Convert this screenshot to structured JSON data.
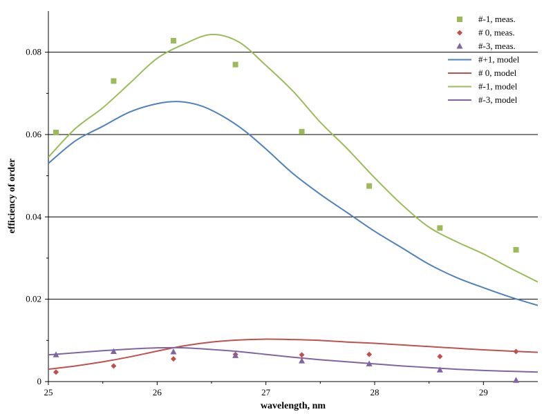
{
  "chart_data": {
    "type": "scatter",
    "xlabel": "wavelength, nm",
    "ylabel": "efficiency of order",
    "xlim": [
      25,
      29.5
    ],
    "ylim": [
      0,
      0.09
    ],
    "xticks": [
      {
        "value": 25,
        "label": "25"
      },
      {
        "value": 26,
        "label": "26"
      },
      {
        "value": 27,
        "label": "27"
      },
      {
        "value": 28,
        "label": "28"
      },
      {
        "value": 29,
        "label": "29"
      }
    ],
    "yticks": [
      {
        "value": 0,
        "label": "0"
      },
      {
        "value": 0.02,
        "label": "0.02"
      },
      {
        "value": 0.04,
        "label": "0.04"
      },
      {
        "value": 0.06,
        "label": "0.06"
      },
      {
        "value": 0.08,
        "label": "0.08"
      }
    ],
    "grid": "horizontal major lines",
    "legend_position": "top-right",
    "series": [
      {
        "name": "#-1, meas.",
        "kind": "marker",
        "marker": "square",
        "color": "#9BBB59",
        "x": [
          25.07,
          25.6,
          26.15,
          26.72,
          27.33,
          27.95,
          28.6,
          29.3
        ],
        "y": [
          0.0605,
          0.073,
          0.0828,
          0.077,
          0.0607,
          0.0475,
          0.0373,
          0.032
        ]
      },
      {
        "name": "# 0, meas.",
        "kind": "marker",
        "marker": "diamond",
        "color": "#C0504D",
        "x": [
          25.07,
          25.6,
          26.15,
          26.72,
          27.33,
          27.95,
          28.6,
          29.3
        ],
        "y": [
          0.0023,
          0.0038,
          0.0055,
          0.0066,
          0.0065,
          0.0066,
          0.0061,
          0.0073
        ]
      },
      {
        "name": "#-3, meas.",
        "kind": "marker",
        "marker": "triangle",
        "color": "#8064A2",
        "x": [
          25.07,
          25.6,
          26.15,
          26.72,
          27.33,
          27.95,
          28.6,
          29.3
        ],
        "y": [
          0.0065,
          0.0073,
          0.0072,
          0.0063,
          0.005,
          0.0043,
          0.0028,
          0.0003
        ]
      },
      {
        "name": "#+1, model",
        "kind": "line",
        "color": "#4F81BD",
        "x": [
          25.0,
          25.25,
          25.5,
          25.75,
          26.0,
          26.2,
          26.4,
          26.6,
          26.8,
          27.0,
          27.25,
          27.5,
          27.75,
          28.0,
          28.25,
          28.5,
          28.75,
          29.0,
          29.25,
          29.5
        ],
        "y": [
          0.053,
          0.0585,
          0.062,
          0.0655,
          0.0675,
          0.068,
          0.067,
          0.0645,
          0.061,
          0.0565,
          0.0505,
          0.0455,
          0.041,
          0.0365,
          0.0325,
          0.0285,
          0.0253,
          0.0228,
          0.0205,
          0.0185
        ]
      },
      {
        "name": "# 0,  model",
        "kind": "line",
        "color": "#C0504D",
        "x": [
          25.0,
          25.25,
          25.5,
          25.75,
          26.0,
          26.25,
          26.5,
          26.75,
          27.0,
          27.25,
          27.5,
          27.75,
          28.0,
          28.25,
          28.5,
          28.75,
          29.0,
          29.25,
          29.5
        ],
        "y": [
          0.003,
          0.0038,
          0.0048,
          0.006,
          0.0074,
          0.0087,
          0.0096,
          0.0101,
          0.0103,
          0.0102,
          0.01,
          0.0096,
          0.0093,
          0.0089,
          0.0085,
          0.0081,
          0.0077,
          0.0074,
          0.0071
        ]
      },
      {
        "name": "#-1,  model",
        "kind": "line",
        "color": "#9BBB59",
        "x": [
          25.0,
          25.25,
          25.5,
          25.75,
          26.0,
          26.25,
          26.5,
          26.75,
          27.0,
          27.25,
          27.5,
          27.75,
          28.0,
          28.25,
          28.5,
          28.75,
          29.0,
          29.25,
          29.5
        ],
        "y": [
          0.0545,
          0.0615,
          0.0665,
          0.0725,
          0.0785,
          0.082,
          0.0843,
          0.0825,
          0.0768,
          0.0705,
          0.063,
          0.0565,
          0.0495,
          0.043,
          0.0375,
          0.034,
          0.031,
          0.0275,
          0.0242
        ]
      },
      {
        "name": "#-3,  model",
        "kind": "line",
        "color": "#8064A2",
        "x": [
          25.0,
          25.25,
          25.5,
          25.75,
          26.0,
          26.25,
          26.5,
          26.75,
          27.0,
          27.25,
          27.5,
          27.75,
          28.0,
          28.25,
          28.5,
          28.75,
          29.0,
          29.25,
          29.5
        ],
        "y": [
          0.0065,
          0.007,
          0.0075,
          0.0079,
          0.0082,
          0.0082,
          0.0078,
          0.0073,
          0.0066,
          0.0059,
          0.0053,
          0.0048,
          0.0043,
          0.0038,
          0.0034,
          0.003,
          0.0027,
          0.0025,
          0.0023
        ]
      }
    ]
  }
}
